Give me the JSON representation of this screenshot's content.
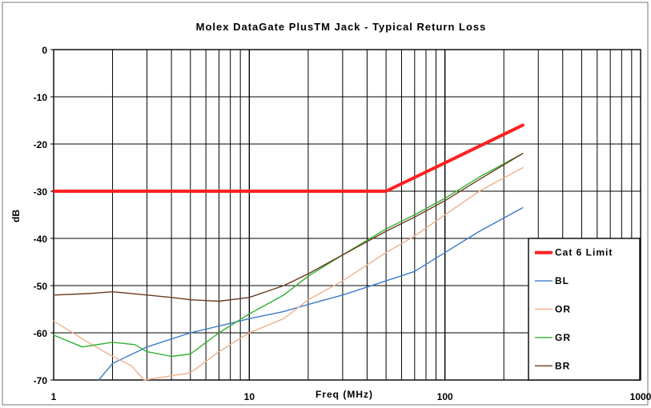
{
  "chart_data": {
    "type": "line",
    "title": "Molex DataGate PlusTM Jack - Typical Return Loss",
    "xlabel": "Freq (MHz)",
    "ylabel": "dB",
    "x_scale": "log",
    "xlim": [
      1,
      1000
    ],
    "ylim": [
      -70,
      0
    ],
    "grid": true,
    "legend_position": "bottom-right",
    "x_ticks": [
      {
        "value": 1,
        "label": "1"
      },
      {
        "value": 10,
        "label": "10"
      },
      {
        "value": 100,
        "label": "100"
      },
      {
        "value": 1000,
        "label": "1000"
      }
    ],
    "y_ticks": [
      {
        "value": 0,
        "label": "0"
      },
      {
        "value": -10,
        "label": "-10"
      },
      {
        "value": -20,
        "label": "-20"
      },
      {
        "value": -30,
        "label": "-30"
      },
      {
        "value": -40,
        "label": "-40"
      },
      {
        "value": -50,
        "label": "-50"
      },
      {
        "value": -60,
        "label": "-60"
      },
      {
        "value": -70,
        "label": "-70"
      }
    ],
    "series": [
      {
        "name": "Cat 6 Limit",
        "color": "#ff2020",
        "points": [
          [
            1,
            -30
          ],
          [
            10,
            -30
          ],
          [
            50,
            -30
          ],
          [
            100,
            -24
          ],
          [
            250,
            -16
          ]
        ]
      },
      {
        "name": "BL",
        "color": "#3a7ac8",
        "points": [
          [
            1.7,
            -70
          ],
          [
            2,
            -66.5
          ],
          [
            3,
            -63
          ],
          [
            5,
            -60
          ],
          [
            8,
            -58
          ],
          [
            10,
            -57
          ],
          [
            15,
            -55.5
          ],
          [
            20,
            -54
          ],
          [
            30,
            -52
          ],
          [
            50,
            -49
          ],
          [
            70,
            -47
          ],
          [
            100,
            -43
          ],
          [
            150,
            -38.5
          ],
          [
            250,
            -33.5
          ]
        ]
      },
      {
        "name": "OR",
        "color": "#f0b090",
        "points": [
          [
            1,
            -57.5
          ],
          [
            1.5,
            -62
          ],
          [
            2,
            -65
          ],
          [
            2.5,
            -67
          ],
          [
            2.9,
            -70
          ],
          [
            5,
            -68.5
          ],
          [
            7,
            -64
          ],
          [
            10,
            -60
          ],
          [
            15,
            -57
          ],
          [
            20,
            -53
          ],
          [
            30,
            -49
          ],
          [
            50,
            -43
          ],
          [
            70,
            -39.5
          ],
          [
            100,
            -35
          ],
          [
            150,
            -30
          ],
          [
            250,
            -25
          ]
        ]
      },
      {
        "name": "GR",
        "color": "#30b030",
        "points": [
          [
            1,
            -60.5
          ],
          [
            1.4,
            -63
          ],
          [
            2,
            -62
          ],
          [
            2.6,
            -62.5
          ],
          [
            3,
            -64
          ],
          [
            4,
            -65
          ],
          [
            5,
            -64.5
          ],
          [
            7,
            -60
          ],
          [
            10,
            -56
          ],
          [
            15,
            -52
          ],
          [
            20,
            -48
          ],
          [
            30,
            -43.5
          ],
          [
            50,
            -38
          ],
          [
            70,
            -35
          ],
          [
            100,
            -31.5
          ],
          [
            150,
            -27
          ],
          [
            250,
            -22
          ]
        ]
      },
      {
        "name": "BR",
        "color": "#6b3b20",
        "points": [
          [
            1,
            -52
          ],
          [
            1.5,
            -51.7
          ],
          [
            2,
            -51.3
          ],
          [
            3,
            -52
          ],
          [
            4,
            -52.5
          ],
          [
            5,
            -53
          ],
          [
            7,
            -53.3
          ],
          [
            10,
            -52.5
          ],
          [
            15,
            -50
          ],
          [
            20,
            -47.5
          ],
          [
            30,
            -43.5
          ],
          [
            50,
            -38.5
          ],
          [
            70,
            -35.5
          ],
          [
            100,
            -32
          ],
          [
            150,
            -27.5
          ],
          [
            250,
            -22
          ]
        ]
      }
    ]
  }
}
